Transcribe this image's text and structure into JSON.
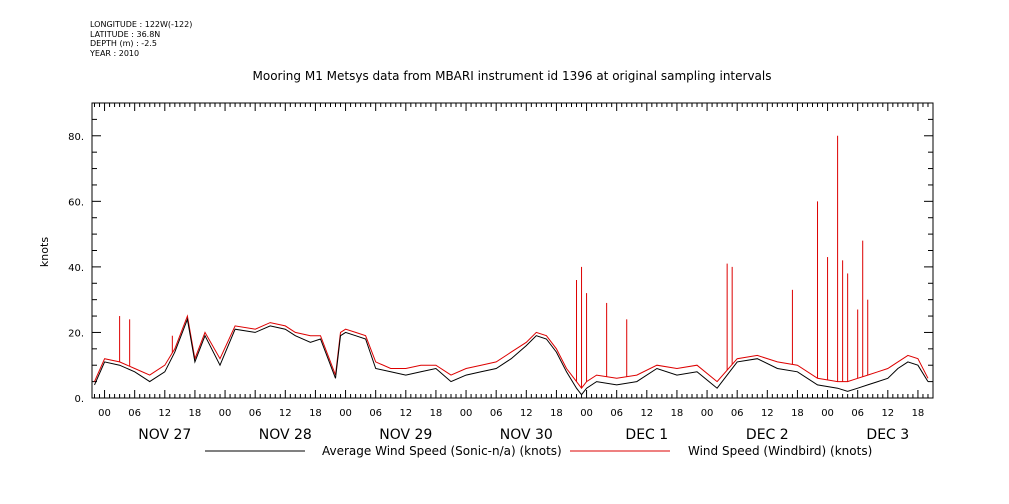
{
  "header": {
    "longitude": "LONGITUDE : 122W(-122)",
    "latitude": "LATITUDE : 36.8N",
    "depth": "DEPTH (m) : -2.5",
    "year": "YEAR : 2010"
  },
  "chart_data": {
    "type": "line",
    "title": "Mooring M1 Metsys data from MBARI instrument id 1396 at original sampling intervals",
    "ylabel": "knots",
    "xlabel": "",
    "ylim": [
      0,
      90
    ],
    "yticks": [
      0,
      20,
      40,
      60,
      80
    ],
    "ytick_labels": [
      "0.",
      "20.",
      "40.",
      "60.",
      "80."
    ],
    "xlim_hours": [
      -2.5,
      165
    ],
    "hour_ticks": [
      0,
      6,
      12,
      18,
      24,
      30,
      36,
      42,
      48,
      54,
      60,
      66,
      72,
      78,
      84,
      90,
      96,
      102,
      108,
      114,
      120,
      126,
      132,
      138,
      144,
      150,
      156,
      162
    ],
    "hour_tick_labels": [
      "00",
      "06",
      "12",
      "18",
      "00",
      "06",
      "12",
      "18",
      "00",
      "06",
      "12",
      "18",
      "00",
      "06",
      "12",
      "18",
      "00",
      "06",
      "12",
      "18",
      "00",
      "06",
      "12",
      "18",
      "00",
      "06",
      "12",
      "18"
    ],
    "day_labels": [
      {
        "label": "NOV 27",
        "hour": 12
      },
      {
        "label": "NOV 28",
        "hour": 36
      },
      {
        "label": "NOV 29",
        "hour": 60
      },
      {
        "label": "NOV 30",
        "hour": 84
      },
      {
        "label": "DEC  1",
        "hour": 108
      },
      {
        "label": "DEC  2",
        "hour": 132
      },
      {
        "label": "DEC  3",
        "hour": 156
      }
    ],
    "x_units": "hours from 2010-11-27 00:00",
    "series": [
      {
        "name": "Average Wind Speed (Sonic-n/a) (knots)",
        "color": "#000000",
        "x": [
          -2,
          0,
          3,
          6,
          9,
          12,
          14,
          16.5,
          18,
          20,
          23,
          26,
          30,
          33,
          36,
          38,
          41,
          43,
          46,
          47,
          48,
          50,
          52,
          54,
          57,
          60,
          63,
          66,
          69,
          72,
          75,
          78,
          81,
          84,
          86,
          88,
          90,
          92,
          94,
          95,
          96,
          98,
          102,
          106,
          110,
          114,
          118,
          122,
          126,
          130,
          134,
          138,
          142,
          146,
          148,
          150,
          152,
          154,
          156,
          158,
          160,
          162,
          164
        ],
        "y": [
          4,
          11,
          10,
          8,
          5,
          8,
          14,
          24,
          11,
          19,
          10,
          21,
          20,
          22,
          21,
          19,
          17,
          18,
          6,
          19,
          20,
          19,
          18,
          9,
          8,
          7,
          8,
          9,
          5,
          7,
          8,
          9,
          12,
          16,
          19,
          18,
          14,
          8,
          3,
          1,
          3,
          5,
          4,
          5,
          9,
          7,
          8,
          3,
          11,
          12,
          9,
          8,
          4,
          3,
          2,
          3,
          4,
          5,
          6,
          9,
          11,
          10,
          5
        ]
      },
      {
        "name": "Wind Speed (Windbird) (knots)",
        "color": "#dd0000",
        "x": [
          -2,
          0,
          3,
          6,
          9,
          12,
          14,
          16.5,
          18,
          20,
          23,
          26,
          30,
          33,
          36,
          38,
          41,
          43,
          46,
          47,
          48,
          50,
          52,
          54,
          57,
          60,
          63,
          66,
          69,
          72,
          75,
          78,
          81,
          84,
          86,
          88,
          90,
          92,
          94,
          95,
          96,
          98,
          102,
          106,
          110,
          114,
          118,
          122,
          126,
          130,
          134,
          138,
          142,
          146,
          148,
          150,
          152,
          154,
          156,
          158,
          160,
          162,
          164
        ],
        "y": [
          5,
          12,
          11,
          9,
          7,
          10,
          15,
          25,
          12,
          20,
          12,
          22,
          21,
          23,
          22,
          20,
          19,
          19,
          7,
          20,
          21,
          20,
          19,
          11,
          9,
          9,
          10,
          10,
          7,
          9,
          10,
          11,
          14,
          17,
          20,
          19,
          15,
          9,
          5,
          3,
          5,
          7,
          6,
          7,
          10,
          9,
          10,
          5,
          12,
          13,
          11,
          10,
          6,
          5,
          5,
          6,
          7,
          8,
          9,
          11,
          13,
          12,
          6
        ],
        "peaks": [
          {
            "x": 3,
            "y": 25
          },
          {
            "x": 5,
            "y": 24
          },
          {
            "x": 13.5,
            "y": 19
          },
          {
            "x": 94,
            "y": 36
          },
          {
            "x": 95,
            "y": 40
          },
          {
            "x": 96,
            "y": 32
          },
          {
            "x": 100,
            "y": 29
          },
          {
            "x": 104,
            "y": 24
          },
          {
            "x": 124,
            "y": 41
          },
          {
            "x": 125,
            "y": 40
          },
          {
            "x": 137,
            "y": 33
          },
          {
            "x": 142,
            "y": 60
          },
          {
            "x": 144,
            "y": 43
          },
          {
            "x": 146,
            "y": 80
          },
          {
            "x": 147,
            "y": 42
          },
          {
            "x": 148,
            "y": 38
          },
          {
            "x": 150,
            "y": 27
          },
          {
            "x": 151,
            "y": 48
          },
          {
            "x": 152,
            "y": 30
          }
        ]
      }
    ]
  }
}
